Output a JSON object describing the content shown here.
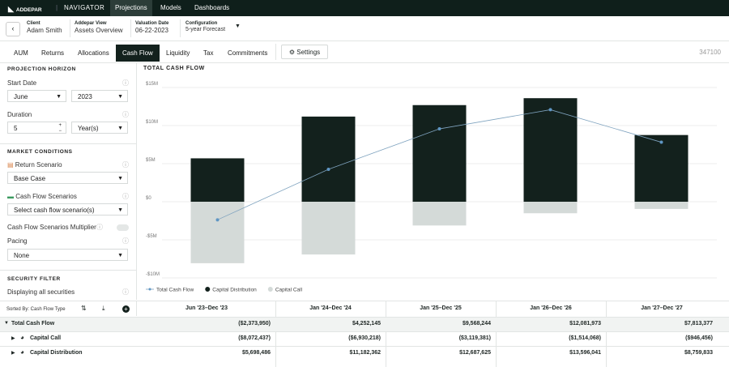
{
  "nav": {
    "logo": "ADDEPAR",
    "product": "NAVIGATOR",
    "items": [
      "Projections",
      "Models",
      "Dashboards"
    ]
  },
  "header": {
    "fields": [
      {
        "label": "Client",
        "value": "Adam Smith"
      },
      {
        "label": "Addepar View",
        "value": "Assets Overview"
      },
      {
        "label": "Valuation Date",
        "value": "06-22-2023"
      },
      {
        "label": "Configuration",
        "value": "5-year Forecast"
      }
    ]
  },
  "tabs": {
    "items": [
      "AUM",
      "Returns",
      "Allocations",
      "Cash Flow",
      "Liquidity",
      "Tax",
      "Commitments"
    ],
    "active": 3,
    "settings": "Settings",
    "id": "347100"
  },
  "sidebar": {
    "projection_horizon": "PROJECTION HORIZON",
    "start_date": "Start Date",
    "month": "June",
    "year": "2023",
    "duration": "Duration",
    "duration_value": "5",
    "duration_unit": "Year(s)",
    "market_conditions": "MARKET CONDITIONS",
    "return_scenario": "Return Scenario",
    "return_value": "Base Case",
    "cash_flow_scenarios": "Cash Flow Scenarios",
    "cash_flow_value": "Select cash flow scenario(s)",
    "multiplier": "Cash Flow Scenarios Multiplier",
    "pacing": "Pacing",
    "pacing_value": "None",
    "security_filter": "SECURITY FILTER",
    "securities": "Displaying all securities"
  },
  "table": {
    "sort_label": "Sorted By: Cash Flow Type"
  },
  "chart_data": {
    "type": "bar",
    "title": "TOTAL CASH FLOW",
    "categories": [
      "Jun '23–Dec '23",
      "Jan '24–Dec '24",
      "Jan '25–Dec '25",
      "Jan '26–Dec '26",
      "Jan '27–Dec '27"
    ],
    "series": [
      {
        "name": "Total Cash Flow",
        "type": "line",
        "color": "#7fa3bf",
        "values": [
          -2373950,
          4252145,
          9568244,
          12081973,
          7813377
        ],
        "value_labels": [
          "($2,373,950)",
          "$4,252,145",
          "$9,568,244",
          "$12,081,973",
          "$7,813,377"
        ]
      },
      {
        "name": "Capital Call",
        "type": "bar",
        "color": "#d4dad8",
        "values": [
          -8072437,
          -6930218,
          -3119381,
          -1514068,
          -946456
        ],
        "value_labels": [
          "($8,072,437)",
          "($6,930,218)",
          "($3,119,381)",
          "($1,514,068)",
          "($946,456)"
        ]
      },
      {
        "name": "Capital Distribution",
        "type": "bar",
        "color": "#13211d",
        "values": [
          5698486,
          11182362,
          12687625,
          13596041,
          8759833
        ],
        "value_labels": [
          "$5,698,486",
          "$11,182,362",
          "$12,687,625",
          "$13,596,041",
          "$8,759,833"
        ]
      }
    ],
    "ylim": [
      -10000000,
      15000000
    ],
    "yticks": [
      {
        "value": -10000000,
        "label": "-$10M"
      },
      {
        "value": -5000000,
        "label": "-$5M"
      },
      {
        "value": 0,
        "label": "$0"
      },
      {
        "value": 5000000,
        "label": "$5M"
      },
      {
        "value": 10000000,
        "label": "$10M"
      },
      {
        "value": 15000000,
        "label": "$15M"
      }
    ],
    "grid": true
  }
}
